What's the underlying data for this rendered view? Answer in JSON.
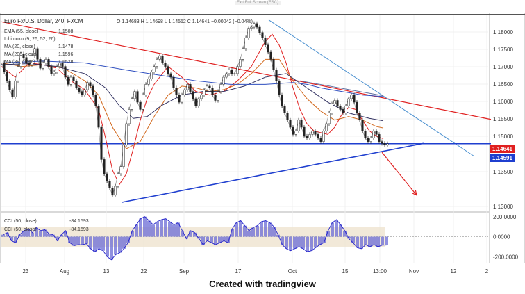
{
  "header": {
    "exit_label": "Exit Full Screen (ESC)",
    "symbol": "Euro Fx/U.S. Dollar, 240, FXCM",
    "ohlc": "O 1.14683  H 1.14698  L 1.14552  C 1.14641  −0.00042 (−0.04%)"
  },
  "legend": [
    {
      "label": "EMA (55, close)",
      "value": "1.1508",
      "color": "#d2691e"
    },
    {
      "label": "Ichimoku (9, 26, 52, 26)",
      "value": "",
      "color": "#999999"
    },
    {
      "label": "MA (20, close)",
      "value": "1.1478",
      "color": "#e02020"
    },
    {
      "label": "MA (200, close)",
      "value": "1.1596",
      "color": "#3050c0"
    },
    {
      "label": "MA (89, close)",
      "value": "1.1528",
      "color": "#303060"
    }
  ],
  "footer": "Created with tradingview",
  "chart_data": [
    {
      "type": "line",
      "x_tick_labels": [
        "23",
        "Aug",
        "13",
        "22",
        "Sep",
        "17",
        "Oct",
        "15",
        "13:00",
        "Nov",
        "12",
        "2"
      ],
      "y_tick_labels": [
        "1.18000",
        "1.17500",
        "1.17000",
        "1.16500",
        "1.16000",
        "1.15500",
        "1.15000",
        "1.13500",
        "1.13000"
      ],
      "ylim": [
        1.1275,
        1.1825
      ],
      "price_badges": [
        {
          "value": "1.14641",
          "color": "#e02020"
        },
        {
          "value": "1.14591",
          "color": "#1f3fcf"
        }
      ],
      "series": [
        {
          "color": "#333333",
          "x": [
            0,
            4,
            8,
            12,
            16,
            20,
            24,
            28,
            32,
            36,
            40,
            44,
            48,
            52,
            56,
            60,
            64,
            68,
            72,
            76,
            80,
            84,
            88,
            92,
            96,
            100,
            104,
            108,
            112,
            116,
            120,
            124,
            128,
            132,
            136,
            140,
            144,
            148,
            152,
            156,
            160,
            164,
            168,
            172,
            176,
            180,
            184,
            188,
            192,
            196,
            200,
            204,
            208,
            212,
            216,
            220,
            224,
            228,
            232,
            236,
            240,
            244,
            248,
            252,
            256,
            260,
            264,
            268,
            272,
            276,
            280,
            284,
            288,
            292,
            296,
            300,
            304,
            308,
            312,
            316,
            320,
            324,
            328,
            332,
            336,
            340,
            344,
            348,
            352,
            356,
            360,
            364,
            368,
            372,
            376,
            380,
            384,
            388,
            392,
            396,
            400,
            404,
            408,
            412,
            416,
            420,
            424,
            428,
            432,
            436,
            440,
            444,
            448,
            452,
            456,
            460,
            464,
            468,
            472,
            476,
            480,
            484,
            488,
            492,
            496,
            500,
            504,
            508,
            512,
            516,
            520,
            524,
            528,
            532,
            536,
            540,
            544,
            548,
            552,
            556
          ],
          "y": [
            1.169,
            1.1665,
            1.164,
            1.1615,
            1.1595,
            1.164,
            1.168,
            1.1715,
            1.1705,
            1.169,
            1.1685,
            1.171,
            1.173,
            1.17,
            1.1675,
            1.169,
            1.17,
            1.168,
            1.166,
            1.1665,
            1.168,
            1.169,
            1.168,
            1.165,
            1.163,
            1.165,
            1.164,
            1.162,
            1.161,
            1.16,
            1.1615,
            1.1635,
            1.1625,
            1.16,
            1.157,
            1.151,
            1.142,
            1.138,
            1.136,
            1.134,
            1.132,
            1.1345,
            1.138,
            1.14,
            1.146,
            1.152,
            1.156,
            1.159,
            1.161,
            1.158,
            1.156,
            1.16,
            1.163,
            1.1645,
            1.1665,
            1.168,
            1.17,
            1.171,
            1.169,
            1.168,
            1.166,
            1.165,
            1.162,
            1.16,
            1.158,
            1.16,
            1.1615,
            1.163,
            1.161,
            1.159,
            1.157,
            1.159,
            1.16,
            1.1615,
            1.1625,
            1.162,
            1.16,
            1.1585,
            1.161,
            1.163,
            1.165,
            1.166,
            1.167,
            1.166,
            1.166,
            1.168,
            1.17,
            1.173,
            1.176,
            1.1785,
            1.179,
            1.18,
            1.179,
            1.1775,
            1.176,
            1.174,
            1.172,
            1.17,
            1.167,
            1.164,
            1.16,
            1.157,
            1.155,
            1.153,
            1.151,
            1.149,
            1.15,
            1.153,
            1.151,
            1.1485,
            1.148,
            1.149,
            1.15,
            1.149,
            1.148,
            1.147,
            1.15,
            1.152,
            1.155,
            1.1575,
            1.1585,
            1.157,
            1.156,
            1.155,
            1.157,
            1.159,
            1.16,
            1.158,
            1.155,
            1.153,
            1.15,
            1.148,
            1.147,
            1.148,
            1.15,
            1.149,
            1.147,
            1.1465,
            1.146,
            1.1464
          ]
        },
        {
          "color": "#e02020",
          "x": [
            0,
            20,
            40,
            60,
            80,
            100,
            120,
            140,
            150,
            160,
            170,
            180,
            190,
            200,
            210,
            220,
            240,
            260,
            280,
            300,
            320,
            340,
            360,
            380,
            390,
            400,
            410,
            420,
            430,
            440,
            450,
            460,
            470,
            480,
            490,
            500,
            510,
            520,
            530,
            540,
            550
          ],
          "y": [
            1.168,
            1.165,
            1.169,
            1.1685,
            1.1675,
            1.164,
            1.1615,
            1.156,
            1.148,
            1.139,
            1.135,
            1.138,
            1.145,
            1.153,
            1.159,
            1.163,
            1.168,
            1.165,
            1.161,
            1.16,
            1.161,
            1.164,
            1.168,
            1.175,
            1.177,
            1.174,
            1.169,
            1.162,
            1.156,
            1.152,
            1.15,
            1.1495,
            1.149,
            1.151,
            1.1545,
            1.1565,
            1.156,
            1.153,
            1.15,
            1.1485,
            1.1478
          ]
        },
        {
          "color": "#d2691e",
          "x": [
            0,
            30,
            60,
            90,
            120,
            140,
            160,
            180,
            200,
            220,
            240,
            260,
            280,
            300,
            320,
            340,
            360,
            380,
            400,
            420,
            440,
            460,
            480,
            500,
            520,
            540,
            550
          ],
          "y": [
            1.169,
            1.168,
            1.1685,
            1.1675,
            1.164,
            1.16,
            1.151,
            1.145,
            1.147,
            1.154,
            1.16,
            1.1625,
            1.162,
            1.161,
            1.1615,
            1.163,
            1.166,
            1.17,
            1.17,
            1.164,
            1.159,
            1.1555,
            1.153,
            1.154,
            1.153,
            1.1512,
            1.1508
          ]
        },
        {
          "color": "#303060",
          "x": [
            0,
            40,
            80,
            120,
            150,
            170,
            190,
            210,
            230,
            260,
            290,
            320,
            350,
            380,
            410,
            440,
            470,
            500,
            530,
            550
          ],
          "y": [
            1.1685,
            1.1688,
            1.168,
            1.166,
            1.162,
            1.157,
            1.1535,
            1.154,
            1.157,
            1.16,
            1.161,
            1.161,
            1.1625,
            1.165,
            1.166,
            1.162,
            1.158,
            1.155,
            1.1535,
            1.1528
          ]
        },
        {
          "color": "#3050c0",
          "x": [
            0,
            60,
            120,
            180,
            230,
            280,
            330,
            380,
            420,
            440,
            460,
            490,
            520,
            550
          ],
          "y": [
            1.169,
            1.1695,
            1.169,
            1.167,
            1.1655,
            1.164,
            1.163,
            1.163,
            1.1635,
            1.163,
            1.162,
            1.161,
            1.16,
            1.1596
          ]
        }
      ],
      "trendlines": [
        {
          "color": "#e02020",
          "x": [
            0,
            705
          ],
          "y": [
            1.1805,
            1.1532
          ]
        },
        {
          "color": "#4a90d0",
          "x": [
            385,
            680
          ],
          "y": [
            1.181,
            1.143
          ]
        },
        {
          "color": "#1f3fcf",
          "x": [
            173,
            608
          ],
          "y": [
            1.13,
            1.1465
          ]
        },
        {
          "color": "#1f3fcf",
          "x": [
            0,
            705
          ],
          "y": [
            1.1464,
            1.1464
          ]
        },
        {
          "color": "#6070a0",
          "x": [
            430,
            550
          ],
          "y": [
            1.164,
            1.1598
          ]
        }
      ],
      "arrow": {
        "color": "#e02020",
        "from": [
          548,
          1.144
        ],
        "to": [
          598,
          1.132
        ]
      },
      "hull_points": [
        [
          0,
          1.168
        ],
        [
          60,
          1.172
        ],
        [
          160,
          1.137
        ],
        [
          200,
          1.162
        ],
        [
          280,
          1.159
        ],
        [
          380,
          1.18
        ],
        [
          440,
          1.151
        ],
        [
          500,
          1.16
        ],
        [
          550,
          1.1465
        ]
      ]
    },
    {
      "type": "bar",
      "title": "",
      "legend": [
        {
          "label": "CCI (50, close)",
          "value": "-84.1593"
        },
        {
          "label": "CCI (50, close)",
          "value": "-84.1593"
        }
      ],
      "y_tick_labels": [
        "200.0000",
        "0.0000",
        "-200.0000"
      ],
      "ylim": [
        -260,
        240
      ],
      "band": [
        -100,
        100
      ],
      "x": [
        0,
        6,
        12,
        18,
        24,
        30,
        36,
        42,
        48,
        54,
        60,
        66,
        72,
        78,
        84,
        90,
        96,
        102,
        108,
        114,
        120,
        126,
        132,
        138,
        144,
        150,
        156,
        162,
        168,
        174,
        180,
        186,
        192,
        198,
        204,
        210,
        216,
        222,
        228,
        234,
        240,
        246,
        252,
        258,
        264,
        270,
        276,
        282,
        288,
        294,
        300,
        306,
        312,
        318,
        324,
        330,
        336,
        342,
        348,
        354,
        360,
        366,
        372,
        378,
        384,
        390,
        396,
        402,
        408,
        414,
        420,
        426,
        432,
        438,
        444,
        450,
        456,
        462,
        468,
        474,
        480,
        486,
        492,
        498,
        504,
        510,
        516,
        522,
        528,
        534,
        540,
        546,
        552
      ],
      "values": [
        20,
        40,
        -40,
        -60,
        20,
        60,
        80,
        40,
        90,
        60,
        70,
        30,
        20,
        -40,
        20,
        60,
        -60,
        -90,
        -80,
        -80,
        -70,
        -120,
        -150,
        -120,
        -140,
        -200,
        -230,
        -180,
        -160,
        -120,
        -60,
        60,
        120,
        180,
        200,
        160,
        120,
        150,
        170,
        180,
        150,
        120,
        140,
        60,
        -20,
        60,
        40,
        -20,
        -80,
        -40,
        -60,
        -80,
        -60,
        -40,
        -60,
        80,
        140,
        160,
        110,
        60,
        90,
        110,
        150,
        160,
        140,
        100,
        20,
        -80,
        -120,
        -140,
        -120,
        -100,
        -120,
        -150,
        -140,
        -110,
        -80,
        -60,
        60,
        140,
        170,
        120,
        60,
        -20,
        -60,
        -110,
        -120,
        -80,
        -100,
        -80,
        -100,
        -84,
        -84
      ]
    }
  ]
}
